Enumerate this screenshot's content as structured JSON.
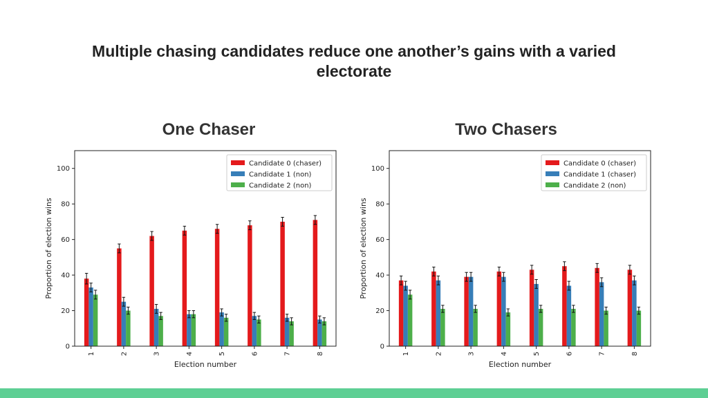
{
  "slide": {
    "title_line1": "Multiple chasing candidates reduce one another’s gains with a varied",
    "title_line2": "electorate",
    "footer_color": "#5ecf94"
  },
  "chart_data": [
    {
      "type": "bar",
      "title": "One Chaser",
      "xlabel": "Election number",
      "ylabel": "Proportion of election wins",
      "ylim": [
        0,
        110
      ],
      "yticks": [
        0,
        20,
        40,
        60,
        80,
        100
      ],
      "categories": [
        "1",
        "2",
        "3",
        "4",
        "5",
        "6",
        "7",
        "8"
      ],
      "legend_position": "top-right",
      "error_bars": true,
      "series": [
        {
          "name": "Candidate 0 (chaser)",
          "color": "#e41a1c",
          "values": [
            38,
            55,
            62,
            65,
            66,
            68,
            70,
            71
          ],
          "errors": [
            3,
            2.5,
            2.5,
            2.5,
            2.5,
            2.5,
            2.5,
            2.5
          ]
        },
        {
          "name": "Candidate 1 (non)",
          "color": "#377eb8",
          "values": [
            33,
            25,
            21,
            18,
            19,
            17,
            16,
            15
          ],
          "errors": [
            2.5,
            2.5,
            2.5,
            2,
            2,
            2,
            2,
            2
          ]
        },
        {
          "name": "Candidate 2 (non)",
          "color": "#4daf4a",
          "values": [
            29,
            20,
            17,
            18,
            16,
            15,
            14,
            14
          ],
          "errors": [
            2.5,
            2,
            2,
            2,
            2,
            2,
            2,
            2
          ]
        }
      ]
    },
    {
      "type": "bar",
      "title": "Two Chasers",
      "xlabel": "Election number",
      "ylabel": "Proportion of election wins",
      "ylim": [
        0,
        110
      ],
      "yticks": [
        0,
        20,
        40,
        60,
        80,
        100
      ],
      "categories": [
        "1",
        "2",
        "3",
        "4",
        "5",
        "6",
        "7",
        "8"
      ],
      "legend_position": "top-right",
      "error_bars": true,
      "series": [
        {
          "name": "Candidate 0 (chaser)",
          "color": "#e41a1c",
          "values": [
            37,
            42,
            39,
            42,
            43,
            45,
            44,
            43
          ],
          "errors": [
            2.5,
            2.5,
            2.5,
            2.5,
            2.5,
            2.5,
            2.5,
            2.5
          ]
        },
        {
          "name": "Candidate 1 (chaser)",
          "color": "#377eb8",
          "values": [
            34,
            37,
            39,
            39,
            35,
            34,
            36,
            37
          ],
          "errors": [
            2.5,
            2.5,
            2.5,
            2.5,
            2.5,
            2.5,
            2.5,
            2.5
          ]
        },
        {
          "name": "Candidate 2 (non)",
          "color": "#4daf4a",
          "values": [
            29,
            21,
            21,
            19,
            21,
            21,
            20,
            20
          ],
          "errors": [
            2.5,
            2,
            2,
            2,
            2,
            2,
            2,
            2
          ]
        }
      ]
    }
  ]
}
